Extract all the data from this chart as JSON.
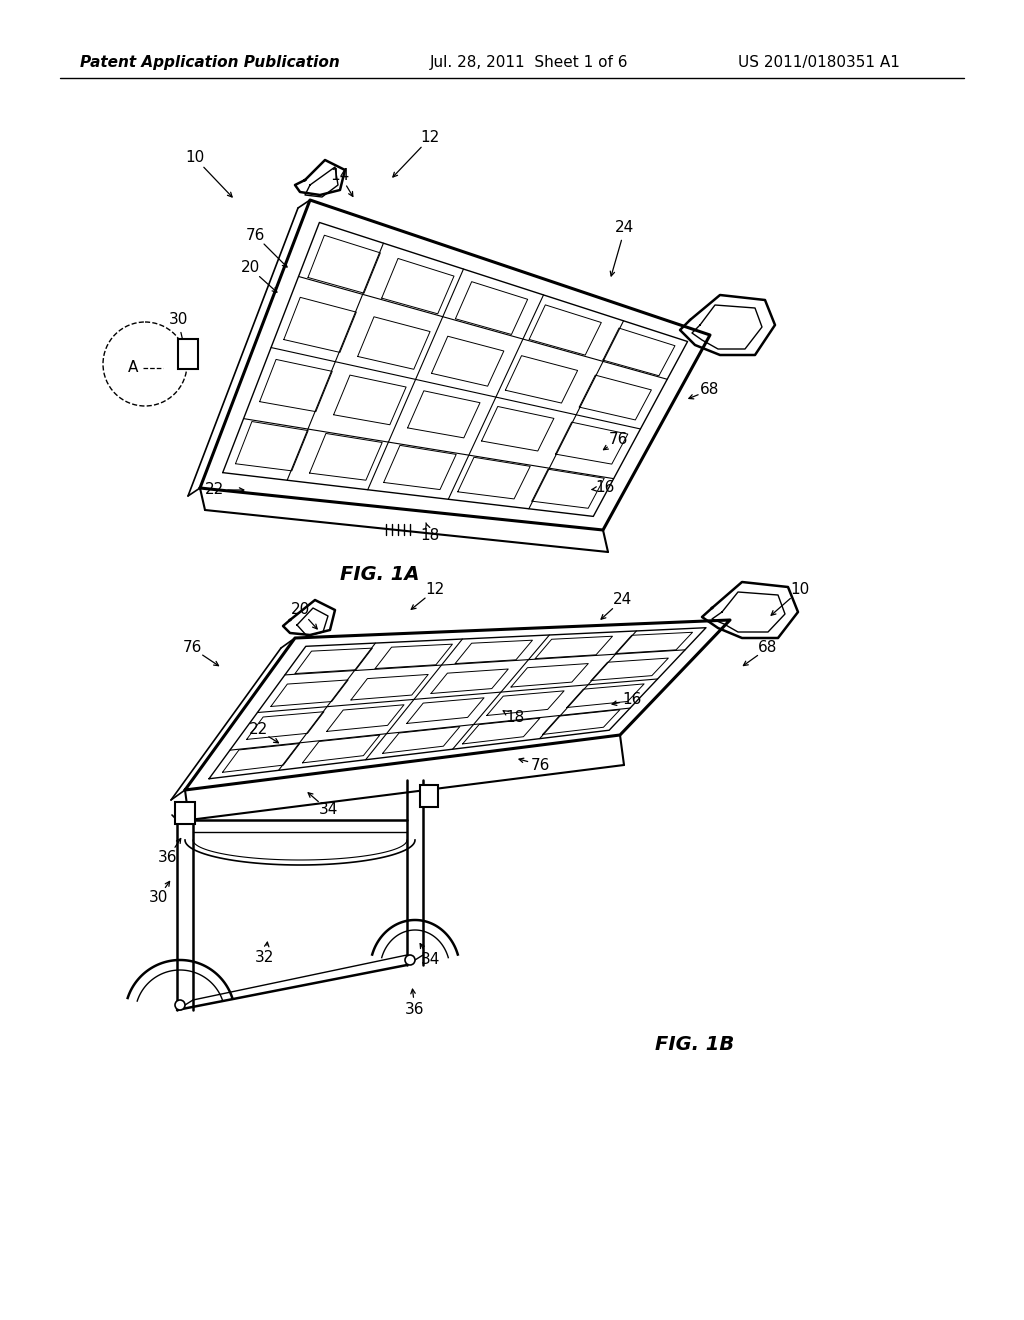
{
  "background_color": "#ffffff",
  "header_left": "Patent Application Publication",
  "header_mid": "Jul. 28, 2011  Sheet 1 of 6",
  "header_right": "US 2011/0180351 A1",
  "fig1a_label": "FIG. 1A",
  "fig1b_label": "FIG. 1B",
  "lfs": 11
}
